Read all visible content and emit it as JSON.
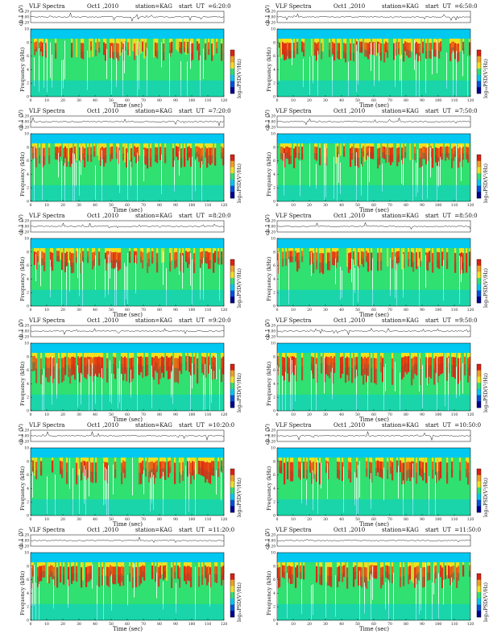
{
  "colors": {
    "low": "#00c8f0",
    "mid": "#30e070",
    "high": "#f0e020",
    "peak": "#e02010",
    "gap": "#ffffff"
  },
  "chart_data": [
    {
      "type": "heatmap",
      "title_left": "VLF Spectra",
      "date": "Oct1 ,2010",
      "station": "station=KAG",
      "start": "start  UT  =6:20:0",
      "ch_label": "ch.1 (V)",
      "ylabel": "Frequency  (kHz)",
      "xlabel": "Time  (sec)",
      "cb_label": "log₁₀PSD(V²/Hz)",
      "y_ticks": [
        "0.20",
        "0.00",
        "-0.20"
      ],
      "freq_ticks": [
        "0",
        "2",
        "4",
        "6",
        "8",
        "10"
      ],
      "x_ticks": [
        "0",
        "10",
        "20",
        "30",
        "40",
        "50",
        "60",
        "70",
        "80",
        "90",
        "100",
        "110",
        "120"
      ],
      "xlim": [
        0,
        120
      ],
      "ylim": [
        0,
        10
      ],
      "activity": 0.45
    },
    {
      "type": "heatmap",
      "title_left": "VLF Spectra",
      "date": "Oct1 ,2010",
      "station": "station=KAG",
      "start": "start  UT  =6:50:0",
      "ch_label": "ch.1 (V)",
      "ylabel": "Frequency  (kHz)",
      "xlabel": "Time  (sec)",
      "cb_label": "log₁₀PSD(V²/Hz)",
      "y_ticks": [
        "0.20",
        "0.00",
        "-0.20"
      ],
      "freq_ticks": [
        "0",
        "2",
        "4",
        "6",
        "8",
        "10"
      ],
      "x_ticks": [
        "0",
        "10",
        "20",
        "30",
        "40",
        "50",
        "60",
        "70",
        "80",
        "90",
        "100",
        "110",
        "120"
      ],
      "xlim": [
        0,
        120
      ],
      "ylim": [
        0,
        10
      ],
      "activity": 0.5
    },
    {
      "type": "heatmap",
      "title_left": "VLF Spectra",
      "date": "Oct1 ,2010",
      "station": "station=KAG",
      "start": "start  UT  =7:20:0",
      "ch_label": "ch.1 (V)",
      "ylabel": "Frequency  (kHz)",
      "xlabel": "Time  (sec)",
      "cb_label": "log₁₀PSD(V²/Hz)",
      "y_ticks": [
        "0.20",
        "0.00",
        "-0.20"
      ],
      "freq_ticks": [
        "0",
        "2",
        "4",
        "6",
        "8",
        "10"
      ],
      "x_ticks": [
        "0",
        "10",
        "20",
        "30",
        "40",
        "50",
        "60",
        "70",
        "80",
        "90",
        "100",
        "110",
        "120"
      ],
      "xlim": [
        0,
        120
      ],
      "ylim": [
        0,
        10
      ],
      "activity": 0.55
    },
    {
      "type": "heatmap",
      "title_left": "VLF Spectra",
      "date": "Oct1 ,2010",
      "station": "station=KAG",
      "start": "start  UT  =7:50:0",
      "ch_label": "ch.1 (V)",
      "ylabel": "Frequency  (kHz)",
      "xlabel": "Time  (sec)",
      "cb_label": "log₁₀PSD(V²/Hz)",
      "y_ticks": [
        "0.20",
        "0.00",
        "-0.20"
      ],
      "freq_ticks": [
        "0",
        "2",
        "4",
        "6",
        "8",
        "10"
      ],
      "x_ticks": [
        "0",
        "10",
        "20",
        "30",
        "40",
        "50",
        "60",
        "70",
        "80",
        "90",
        "100",
        "110",
        "120"
      ],
      "xlim": [
        0,
        120
      ],
      "ylim": [
        0,
        10
      ],
      "activity": 0.55
    },
    {
      "type": "heatmap",
      "title_left": "VLF Spectra",
      "date": "Oct1 ,2010",
      "station": "station=KAG",
      "start": "start  UT  =8:20:0",
      "ch_label": "ch.1 (V)",
      "ylabel": "Frequency  (kHz)",
      "xlabel": "Time  (sec)",
      "cb_label": "log₁₀PSD(V²/Hz)",
      "y_ticks": [
        "0.20",
        "0.00",
        "-0.20"
      ],
      "freq_ticks": [
        "0",
        "2",
        "4",
        "6",
        "8",
        "10"
      ],
      "x_ticks": [
        "0",
        "10",
        "20",
        "30",
        "40",
        "50",
        "60",
        "70",
        "80",
        "90",
        "100",
        "110",
        "120"
      ],
      "xlim": [
        0,
        120
      ],
      "ylim": [
        0,
        10
      ],
      "activity": 0.55
    },
    {
      "type": "heatmap",
      "title_left": "VLF Spectra",
      "date": "Oct1 ,2010",
      "station": "station=KAG",
      "start": "start  UT  =8:50:0",
      "ch_label": "ch.1 (V)",
      "ylabel": "Frequency  (kHz)",
      "xlabel": "Time  (sec)",
      "cb_label": "log₁₀PSD(V²/Hz)",
      "y_ticks": [
        "0.20",
        "0.00",
        "-0.20"
      ],
      "freq_ticks": [
        "0",
        "2",
        "4",
        "6",
        "8",
        "10"
      ],
      "x_ticks": [
        "0",
        "10",
        "20",
        "30",
        "40",
        "50",
        "60",
        "70",
        "80",
        "90",
        "100",
        "110",
        "120"
      ],
      "xlim": [
        0,
        120
      ],
      "ylim": [
        0,
        10
      ],
      "activity": 0.58
    },
    {
      "type": "heatmap",
      "title_left": "VLF Spectra",
      "date": "Oct1 ,2010",
      "station": "station=KAG",
      "start": "start  UT  =9:20:0",
      "ch_label": "ch.1 (V)",
      "ylabel": "Frequency  (kHz)",
      "xlabel": "Time  (sec)",
      "cb_label": "log₁₀PSD(V²/Hz)",
      "y_ticks": [
        "0.20",
        "0.00",
        "-0.20"
      ],
      "freq_ticks": [
        "0",
        "2",
        "4",
        "6",
        "8",
        "10"
      ],
      "x_ticks": [
        "0",
        "10",
        "20",
        "30",
        "40",
        "50",
        "60",
        "70",
        "80",
        "90",
        "100",
        "110",
        "120"
      ],
      "xlim": [
        0,
        120
      ],
      "ylim": [
        0,
        10
      ],
      "activity": 0.78
    },
    {
      "type": "heatmap",
      "title_left": "VLF Spectra",
      "date": "Oct1 ,2010",
      "station": "station=KAG",
      "start": "start  UT  =9:50:0",
      "ch_label": "ch.1 (V)",
      "ylabel": "Frequency  (kHz)",
      "xlabel": "Time  (sec)",
      "cb_label": "log₁₀PSD(V²/Hz)",
      "y_ticks": [
        "0.20",
        "0.00",
        "-0.20"
      ],
      "freq_ticks": [
        "0",
        "2",
        "4",
        "6",
        "8",
        "10"
      ],
      "x_ticks": [
        "0",
        "10",
        "20",
        "30",
        "40",
        "50",
        "60",
        "70",
        "80",
        "90",
        "100",
        "110",
        "120"
      ],
      "xlim": [
        0,
        120
      ],
      "ylim": [
        0,
        10
      ],
      "activity": 0.82
    },
    {
      "type": "heatmap",
      "title_left": "VLF Spectra",
      "date": "Oct1 ,2010",
      "station": "station=KAG",
      "start": "start  UT  =10:20:0",
      "ch_label": "ch.1 (V)",
      "ylabel": "Frequency  (kHz)",
      "xlabel": "Time  (sec)",
      "cb_label": "log₁₀PSD(V²/Hz)",
      "y_ticks": [
        "0.20",
        "0.00",
        "-0.20"
      ],
      "freq_ticks": [
        "0",
        "2",
        "4",
        "6",
        "8",
        "10"
      ],
      "x_ticks": [
        "0",
        "10",
        "20",
        "30",
        "40",
        "50",
        "60",
        "70",
        "80",
        "90",
        "100",
        "110",
        "120"
      ],
      "xlim": [
        0,
        120
      ],
      "ylim": [
        0,
        10
      ],
      "activity": 0.62
    },
    {
      "type": "heatmap",
      "title_left": "VLF Spectra",
      "date": "Oct1 ,2010",
      "station": "station=KAG",
      "start": "start  UT  =10:50:0",
      "ch_label": "ch.1 (V)",
      "ylabel": "Frequency  (kHz)",
      "xlabel": "Time  (sec)",
      "cb_label": "log₁₀PSD(V²/Hz)",
      "y_ticks": [
        "0.20",
        "0.00",
        "-0.20"
      ],
      "freq_ticks": [
        "0",
        "2",
        "4",
        "6",
        "8",
        "10"
      ],
      "x_ticks": [
        "0",
        "10",
        "20",
        "30",
        "40",
        "50",
        "60",
        "70",
        "80",
        "90",
        "100",
        "110",
        "120"
      ],
      "xlim": [
        0,
        120
      ],
      "ylim": [
        0,
        10
      ],
      "activity": 0.62
    },
    {
      "type": "heatmap",
      "title_left": "VLF Spectra",
      "date": "Oct1 ,2010",
      "station": "station=KAG",
      "start": "start  UT  =11:20:0",
      "ch_label": "ch.1 (V)",
      "ylabel": "Frequency  (kHz)",
      "xlabel": "Time  (sec)",
      "cb_label": "log₁₀PSD(V²/Hz)",
      "y_ticks": [
        "0.20",
        "0.00",
        "-0.20"
      ],
      "freq_ticks": [
        "0",
        "2",
        "4",
        "6",
        "8",
        "10"
      ],
      "x_ticks": [
        "0",
        "10",
        "20",
        "30",
        "40",
        "50",
        "60",
        "70",
        "80",
        "90",
        "100",
        "110",
        "120"
      ],
      "xlim": [
        0,
        120
      ],
      "ylim": [
        0,
        10
      ],
      "activity": 0.6
    },
    {
      "type": "heatmap",
      "title_left": "VLF Spectra",
      "date": "Oct1 ,2010",
      "station": "station=KAG",
      "start": "start  UT  =11:50:0",
      "ch_label": "ch.1 (V)",
      "ylabel": "Frequency  (kHz)",
      "xlabel": "Time  (sec)",
      "cb_label": "log₁₀PSD(V²/Hz)",
      "y_ticks": [
        "0.20",
        "0.00",
        "-0.20"
      ],
      "freq_ticks": [
        "0",
        "2",
        "4",
        "6",
        "8",
        "10"
      ],
      "x_ticks": [
        "0",
        "10",
        "20",
        "30",
        "40",
        "50",
        "60",
        "70",
        "80",
        "90",
        "100",
        "110",
        "120"
      ],
      "xlim": [
        0,
        120
      ],
      "ylim": [
        0,
        10
      ],
      "activity": 0.6
    }
  ]
}
